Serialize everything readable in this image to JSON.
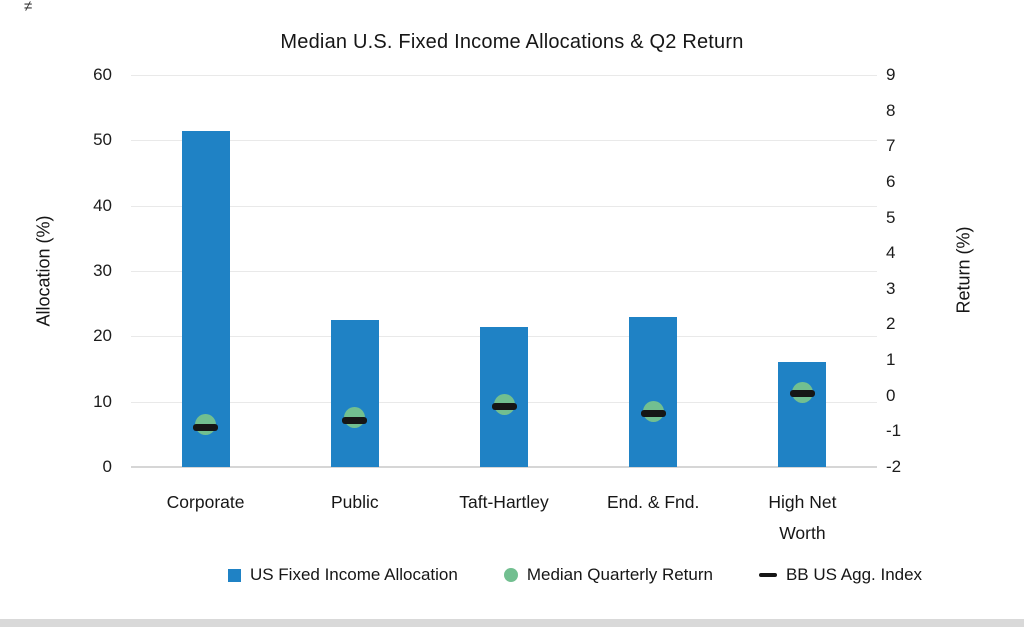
{
  "page": {
    "stray_mark": "≠",
    "background": "#ffffff",
    "footer_strip_color": "#d9d9d9"
  },
  "chart_data": {
    "type": "bar",
    "title": "Median U.S. Fixed Income Allocations & Q2 Return",
    "categories": [
      "Corporate",
      "Public",
      "Taft-Hartley",
      "End. & Fnd.",
      "High Net Worth"
    ],
    "series": [
      {
        "name": "US Fixed Income Allocation",
        "mark": "bar",
        "axis": "left",
        "color": "#1f82c5",
        "values": [
          51.5,
          22.5,
          21.5,
          23,
          16
        ]
      },
      {
        "name": "Median Quarterly Return",
        "mark": "circle",
        "axis": "right",
        "color": "#72bf90",
        "values": [
          -0.8,
          -0.6,
          -0.25,
          -0.45,
          0.1
        ]
      },
      {
        "name": "BB US Agg. Index",
        "mark": "dash",
        "axis": "right",
        "color": "#161616",
        "values": [
          -0.9,
          -0.7,
          -0.3,
          -0.5,
          0.05
        ]
      }
    ],
    "left_axis": {
      "label": "Allocation (%)",
      "min": 0,
      "max": 60,
      "ticks": [
        0,
        10,
        20,
        30,
        40,
        50,
        60
      ]
    },
    "right_axis": {
      "label": "Return (%)",
      "min": -2,
      "max": 9,
      "ticks": [
        -2,
        -1,
        0,
        1,
        2,
        3,
        4,
        5,
        6,
        7,
        8,
        9
      ]
    },
    "grid": true,
    "legend_position": "bottom",
    "styles": {
      "gridline": "#e9e9e9",
      "axis_line": "#d6d6d6",
      "text": "#1c1c1c",
      "background": "#ffffff"
    }
  }
}
